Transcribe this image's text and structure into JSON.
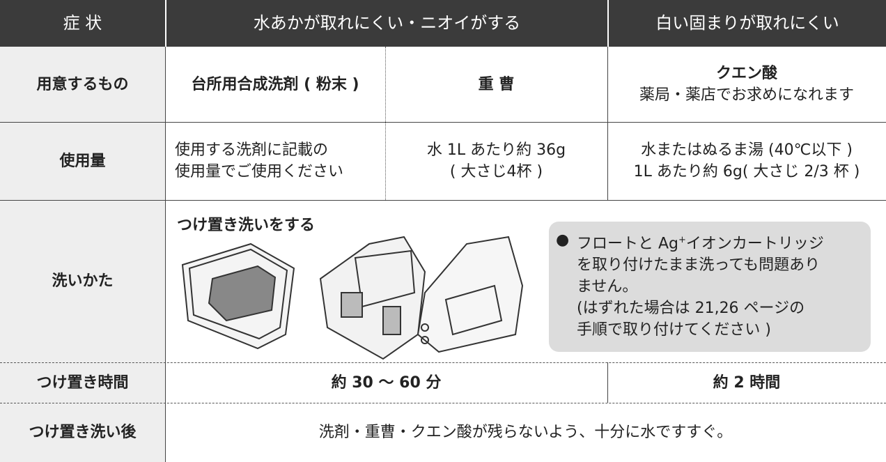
{
  "table": {
    "header": [
      "症 状",
      "水あかが取れにくい・ニオイがする",
      "白い固まりが取れにくい"
    ],
    "rows": [
      {
        "label": "用意するもの",
        "cells": [
          {
            "title": "台所用合成洗剤 ( 粉末 )"
          },
          {
            "title": "重 曹"
          },
          {
            "title": "クエン酸",
            "note": "薬局・薬店でお求めになれます"
          }
        ]
      },
      {
        "label": "使用量",
        "cells": [
          [
            "使用する洗剤に記載の",
            "使用量でご使用ください"
          ],
          [
            "水 1L あたり約 36g",
            "( 大さじ4杯 )"
          ],
          [
            "水またはぬるま湯 (40℃以下 )",
            "1L あたり約 6g( 大さじ 2/3 杯 )"
          ]
        ]
      },
      {
        "label": "洗いかた",
        "heading": "つけ置き洗いをする",
        "note": {
          "lead": "フロートと Ag",
          "sup": "+",
          "rest": "イオンカートリッジ",
          "lines": [
            "を取り付けたまま洗っても問題あり",
            "ません。",
            "(はずれた場合は 21,26 ページの",
            "手順で取り付けてください )"
          ]
        }
      },
      {
        "label": "つけ置き時間",
        "cells": [
          "約 30 ～ 60 分",
          "約 2 時間"
        ]
      },
      {
        "label": "つけ置き洗い後",
        "cells": [
          "洗剤・重曹・クエン酸が残らないよう、十分に水ですすぐ。"
        ]
      }
    ]
  }
}
